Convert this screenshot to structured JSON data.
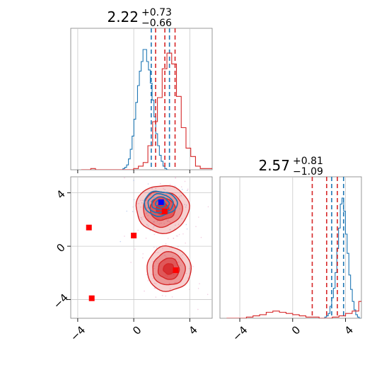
{
  "colors": {
    "red": "#d62728",
    "blue": "#1f77b4",
    "grid": "#c8c8c8",
    "marker_red": "#ff0000",
    "marker_blue": "#0000ff"
  },
  "chart_data": [
    {
      "type": "step-histogram",
      "panel": "top-left marginal (x)",
      "title_value": "2.22",
      "title_plus": "+0.73",
      "title_minus": "−0.66",
      "xlim": [
        -4.5,
        5.6
      ],
      "grid": true,
      "series": [
        {
          "color": "blue",
          "bin_edges_start": -0.9,
          "bin_width": 0.13,
          "counts": [
            0,
            1,
            2,
            4,
            9,
            17,
            28,
            42,
            56,
            70,
            82,
            90,
            100,
            100,
            90,
            83,
            72,
            58,
            44,
            30,
            20,
            12,
            7,
            3,
            1,
            0
          ],
          "quantile_lines_x": [
            1.25,
            2.55
          ]
        },
        {
          "color": "red",
          "bin_edges_start": -3.75,
          "bin_width": 0.34,
          "counts": [
            0,
            0,
            1,
            0,
            0,
            0,
            0,
            0,
            0,
            0,
            0,
            1,
            3,
            6,
            20,
            40,
            60,
            84,
            97,
            88,
            61,
            35,
            18,
            11,
            3,
            1,
            1,
            1
          ],
          "quantile_lines_x": [
            1.56,
            2.22,
            2.95
          ]
        }
      ]
    },
    {
      "type": "step-histogram",
      "panel": "bottom-right marginal (y)",
      "title_value": "2.57",
      "title_plus": "+0.81",
      "title_minus": "−1.09",
      "xlim": [
        -5.5,
        5.2
      ],
      "xticks": [
        "−4",
        "0",
        "4"
      ],
      "grid": true,
      "series": [
        {
          "color": "blue",
          "bin_edges_start": 2.3,
          "bin_width": 0.13,
          "counts": [
            0,
            1,
            2,
            4,
            10,
            17,
            25,
            38,
            58,
            75,
            95,
            100,
            89,
            70,
            54,
            36,
            24,
            14,
            7,
            3,
            1,
            0
          ],
          "quantile_lines_x": [
            2.95,
            3.85
          ]
        },
        {
          "color": "red",
          "bin_edges_start": -5.0,
          "bin_width": 0.5,
          "counts": [
            0,
            0,
            0,
            1,
            2,
            3,
            5,
            6,
            5,
            4,
            3,
            2,
            1,
            1,
            0,
            0,
            1,
            2,
            4,
            6,
            14,
            28,
            42,
            43,
            30,
            13,
            8,
            3,
            1,
            0
          ],
          "quantile_lines_x": [
            1.48,
            2.57,
            3.38
          ]
        }
      ]
    },
    {
      "type": "corner-2d-density",
      "panel": "bottom-left joint (x vs y)",
      "xlim": [
        -4.5,
        5.6
      ],
      "ylim": [
        -5.4,
        5.2
      ],
      "xticks": [
        "−4",
        "0",
        "4"
      ],
      "yticks": [
        "4",
        "0",
        "−4"
      ],
      "grid": true,
      "blue_cluster": {
        "center": [
          1.9,
          3.2
        ],
        "sx": 0.62,
        "sy": 0.48
      },
      "red_clusters": [
        {
          "center": [
            2.05,
            2.8
          ],
          "sx": 0.9,
          "sy": 0.85
        },
        {
          "center": [
            2.5,
            -1.7
          ],
          "sx": 0.75,
          "sy": 0.8
        }
      ],
      "red_markers": [
        {
          "x": -3.2,
          "y": 1.4
        },
        {
          "x": 0.0,
          "y": 0.8
        },
        {
          "x": 2.2,
          "y": 2.6
        },
        {
          "x": 3.0,
          "y": -1.8
        },
        {
          "x": -3.0,
          "y": -3.9
        }
      ],
      "blue_markers": [
        {
          "x": 1.95,
          "y": 3.3
        }
      ]
    }
  ]
}
